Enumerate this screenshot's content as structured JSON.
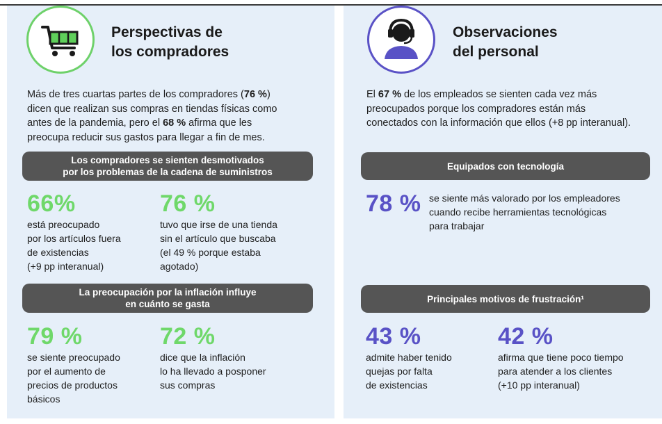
{
  "colors": {
    "green": "#6fd86a",
    "purple": "#5952c6",
    "banner": "#555555",
    "panel": "#e6eff9"
  },
  "left": {
    "icon": "shopping-cart-icon",
    "title_line1": "Perspectivas de",
    "title_line2": "los compradores",
    "intro": {
      "p1": "Más de tres cuartas partes de los compradores (",
      "b1": "76 %",
      "p2": ")",
      "line2": "dicen que realizan sus compras en tiendas físicas como",
      "line3a": "antes de la pandemia, pero el ",
      "b2": "68 %",
      "line3b": " afirma que les",
      "line4": "preocupa reducir sus gastos para llegar a fin de mes."
    },
    "banner1": {
      "line1": "Los compradores se sienten desmotivados",
      "line2": "por los problemas de la cadena de suministros"
    },
    "stat1": {
      "value": "66%",
      "lines": [
        "está preocupado",
        "por los artículos fuera",
        "de existencias",
        "(+9 pp interanual)"
      ]
    },
    "stat2": {
      "value": "76 %",
      "lines": [
        "tuvo que irse de una tienda",
        "sin el artículo que buscaba",
        "(el 49 % porque estaba",
        "agotado)"
      ]
    },
    "banner2": {
      "line1": "La preocupación por la inflación influye",
      "line2": "en cuánto se gasta"
    },
    "stat3": {
      "value": "79 %",
      "lines": [
        "se siente preocupado",
        "por el aumento de",
        "precios de productos",
        "básicos"
      ]
    },
    "stat4": {
      "value": "72 %",
      "lines": [
        "dice que la inflación",
        "lo ha llevado a posponer",
        "sus compras"
      ]
    }
  },
  "right": {
    "icon": "headset-agent-icon",
    "title_line1": "Observaciones",
    "title_line2": "del personal",
    "intro": {
      "line1a": "El ",
      "b1": "67 %",
      "line1b": " de los empleados se sienten cada vez más",
      "line2": "preocupados porque los compradores están más",
      "line3": "conectados con la información que ellos (+8 pp interanual)."
    },
    "banner1": {
      "line1": "Equipados con tecnología"
    },
    "stat1": {
      "value": "78 %",
      "lines": [
        "se siente más valorado por los empleadores",
        "cuando recibe herramientas tecnológicas",
        "para trabajar"
      ]
    },
    "banner2": {
      "line1": "Principales motivos de frustración¹"
    },
    "stat2": {
      "value": "43 %",
      "lines": [
        "admite haber tenido",
        "quejas por falta",
        "de existencias"
      ]
    },
    "stat3": {
      "value": "42 %",
      "lines": [
        "afirma que tiene poco tiempo",
        "para atender a los clientes",
        "(+10 pp interanual)"
      ]
    }
  }
}
